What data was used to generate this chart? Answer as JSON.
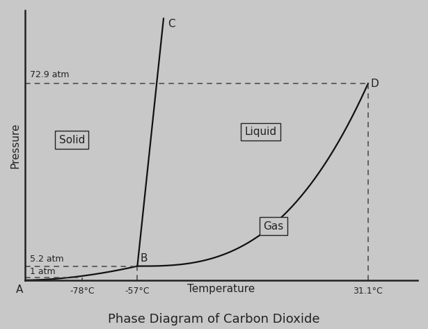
{
  "title": "Phase Diagram of Carbon Dioxide",
  "xlabel": "Temperature",
  "ylabel": "Pressure",
  "bg_color": "#c8c8c8",
  "plot_bg_color": "#c8c8c8",
  "text_color": "#222222",
  "x_min": -100,
  "x_max": 50,
  "y_min": 0,
  "y_max": 100,
  "T_78": -78,
  "T_57": -57,
  "T_31": 31.1,
  "P_1": 1.0,
  "P_52": 5.2,
  "P_729": 72.9,
  "dashed_line_color": "#444444",
  "label_A": "A",
  "label_B": "B",
  "label_C": "C",
  "label_D": "D",
  "label_solid": "Solid",
  "label_liquid": "Liquid",
  "label_gas": "Gas",
  "press_labels": [
    "72.9 atm",
    "5.2 atm",
    "1 atm"
  ],
  "temp_labels": [
    "-78°C",
    "-57°C",
    "31.1°C"
  ]
}
